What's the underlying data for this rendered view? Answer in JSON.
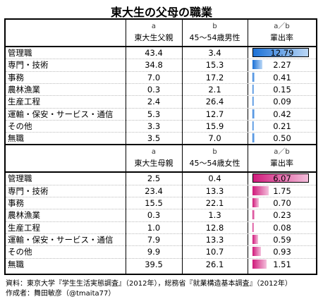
{
  "title": "東大生の父母の職業",
  "footer": {
    "source": "資料：東京大学『学生生活実態調査』（2012年），総務省『就業構造基本調査』（2012年）",
    "author": "作成者：舞田敏彦（@tmaita77）"
  },
  "chart_data": [
    {
      "type": "table",
      "headers": {
        "a": "a",
        "b": "b",
        "ab": "a／b",
        "col_a": "東大生父親",
        "col_b": "45～54歳男性",
        "col_ratio": "輩出率"
      },
      "rows": [
        {
          "label": "管理職",
          "a": "43.4",
          "b": "3.4",
          "ratio": "12.79",
          "ratio_value": 12.79
        },
        {
          "label": "専門・技術",
          "a": "34.8",
          "b": "15.3",
          "ratio": "2.27",
          "ratio_value": 2.27
        },
        {
          "label": "事務",
          "a": "7.0",
          "b": "17.2",
          "ratio": "0.41",
          "ratio_value": 0.41
        },
        {
          "label": "農林漁業",
          "a": "0.3",
          "b": "2.1",
          "ratio": "0.15",
          "ratio_value": 0.15
        },
        {
          "label": "生産工程",
          "a": "2.4",
          "b": "26.4",
          "ratio": "0.09",
          "ratio_value": 0.09
        },
        {
          "label": "運輸・保安・サービス・通信",
          "a": "5.3",
          "b": "12.7",
          "ratio": "0.42",
          "ratio_value": 0.42
        },
        {
          "label": "その他",
          "a": "3.3",
          "b": "15.9",
          "ratio": "0.21",
          "ratio_value": 0.21
        },
        {
          "label": "無職",
          "a": "3.5",
          "b": "7.0",
          "ratio": "0.50",
          "ratio_value": 0.5
        }
      ],
      "bar_color": "#1a70d6"
    },
    {
      "type": "table",
      "headers": {
        "a": "a",
        "b": "b",
        "ab": "a／b",
        "col_a": "東大生母親",
        "col_b": "45～54歳女性",
        "col_ratio": "輩出率"
      },
      "rows": [
        {
          "label": "管理職",
          "a": "2.5",
          "b": "0.4",
          "ratio": "6.07",
          "ratio_value": 6.07
        },
        {
          "label": "専門・技術",
          "a": "23.4",
          "b": "13.3",
          "ratio": "1.75",
          "ratio_value": 1.75
        },
        {
          "label": "事務",
          "a": "15.5",
          "b": "22.1",
          "ratio": "0.70",
          "ratio_value": 0.7
        },
        {
          "label": "農林漁業",
          "a": "0.3",
          "b": "1.3",
          "ratio": "0.23",
          "ratio_value": 0.23
        },
        {
          "label": "生産工程",
          "a": "1.0",
          "b": "12.8",
          "ratio": "0.08",
          "ratio_value": 0.08
        },
        {
          "label": "運輸・保安・サービス・通信",
          "a": "7.9",
          "b": "13.3",
          "ratio": "0.59",
          "ratio_value": 0.59
        },
        {
          "label": "その他",
          "a": "9.9",
          "b": "10.7",
          "ratio": "0.93",
          "ratio_value": 0.93
        },
        {
          "label": "無職",
          "a": "39.5",
          "b": "26.1",
          "ratio": "1.51",
          "ratio_value": 1.51
        }
      ],
      "bar_color": "#d0187a"
    }
  ]
}
